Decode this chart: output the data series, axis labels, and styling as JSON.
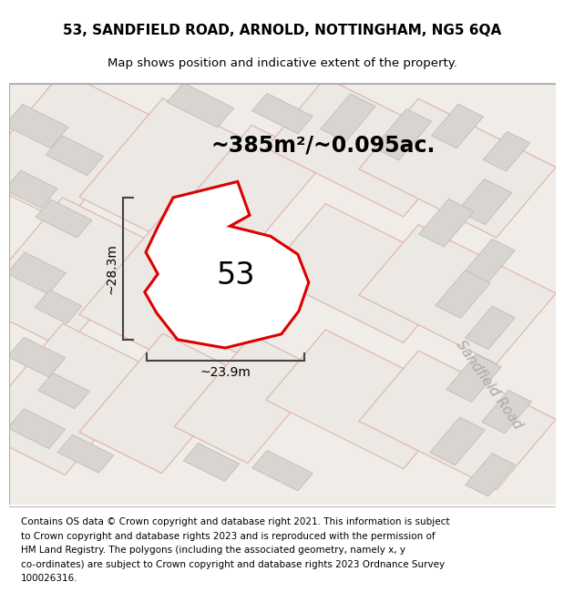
{
  "title_line1": "53, SANDFIELD ROAD, ARNOLD, NOTTINGHAM, NG5 6QA",
  "title_line2": "Map shows position and indicative extent of the property.",
  "area_label": "~385m²/~0.095ac.",
  "width_label": "~23.9m",
  "height_label": "~28.3m",
  "number_label": "53",
  "road_label": "Sandfield Road",
  "footer_lines": [
    "Contains OS data © Crown copyright and database right 2021. This information is subject",
    "to Crown copyright and database rights 2023 and is reproduced with the permission of",
    "HM Land Registry. The polygons (including the associated geometry, namely x, y",
    "co-ordinates) are subject to Crown copyright and database rights 2023 Ordnance Survey",
    "100026316."
  ],
  "map_bg": "#f0ede8",
  "plot_fill": "#ffffff",
  "plot_outline": "#dd0000",
  "plot_lw": 2.2,
  "building_fill": "#d8d4d0",
  "building_edge": "#c0bcb8",
  "parcel_fill": "#ece8e3",
  "parcel_edge": "#e0b0b0",
  "dim_line_color": "#444444",
  "road_label_color": "#aaaaaa",
  "title_fontsize": 11,
  "subtitle_fontsize": 9.5,
  "area_fontsize": 17,
  "number_fontsize": 24,
  "road_label_fontsize": 11,
  "footer_fontsize": 7.5
}
